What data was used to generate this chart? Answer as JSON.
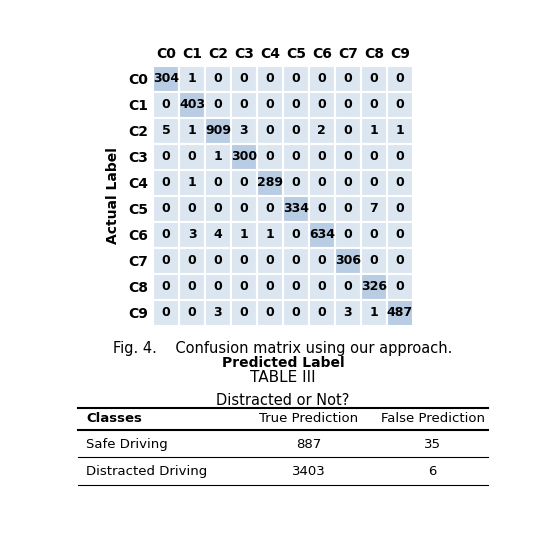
{
  "confusion_matrix": [
    [
      304,
      1,
      0,
      0,
      0,
      0,
      0,
      0,
      0,
      0
    ],
    [
      0,
      403,
      0,
      0,
      0,
      0,
      0,
      0,
      0,
      0
    ],
    [
      5,
      1,
      909,
      3,
      0,
      0,
      2,
      0,
      1,
      1
    ],
    [
      0,
      0,
      1,
      300,
      0,
      0,
      0,
      0,
      0,
      0
    ],
    [
      0,
      1,
      0,
      0,
      289,
      0,
      0,
      0,
      0,
      0
    ],
    [
      0,
      0,
      0,
      0,
      0,
      334,
      0,
      0,
      7,
      0
    ],
    [
      0,
      3,
      4,
      1,
      1,
      0,
      634,
      0,
      0,
      0
    ],
    [
      0,
      0,
      0,
      0,
      0,
      0,
      0,
      306,
      0,
      0
    ],
    [
      0,
      0,
      0,
      0,
      0,
      0,
      0,
      0,
      326,
      0
    ],
    [
      0,
      0,
      3,
      0,
      0,
      0,
      0,
      3,
      1,
      487
    ]
  ],
  "classes": [
    "C0",
    "C1",
    "C2",
    "C3",
    "C4",
    "C5",
    "C6",
    "C7",
    "C8",
    "C9"
  ],
  "cell_color_diagonal": "#b8cce4",
  "cell_color_offdiag": "#dce6f1",
  "grid_color": "#ffffff",
  "text_color": "#000000",
  "fig_caption": "Fig. 4.    Confusion matrix using our approach.",
  "xlabel": "Predicted Label",
  "ylabel": "Actual Label",
  "table_title": "TABLE III",
  "table_subtitle": "Distracted or Not?",
  "table_headers": [
    "Classes",
    "True Prediction",
    "False Prediction"
  ],
  "table_rows": [
    [
      "Safe Driving",
      "887",
      "35"
    ],
    [
      "Distracted Driving",
      "3403",
      "6"
    ]
  ],
  "bg_color": "#ffffff",
  "cell_fontsize": 9,
  "label_fontsize": 10,
  "axis_label_fontsize": 10
}
